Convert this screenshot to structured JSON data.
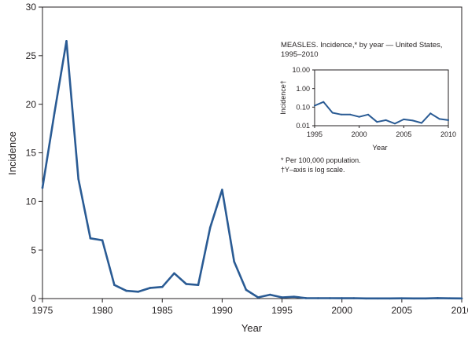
{
  "chart_data": [
    {
      "type": "line",
      "title": "",
      "xlabel": "Year",
      "ylabel": "Incidence",
      "xlim": [
        1975,
        2010
      ],
      "ylim": [
        0,
        30
      ],
      "xticks": [
        "1975",
        "1980",
        "1985",
        "1990",
        "1995",
        "2000",
        "2005",
        "2010"
      ],
      "yticks": [
        "0",
        "5",
        "10",
        "15",
        "20",
        "25",
        "30"
      ],
      "grid": false,
      "line_color": "#2a5b94",
      "series": [
        {
          "x": [
            1975,
            1976,
            1977,
            1978,
            1979,
            1980,
            1981,
            1982,
            1983,
            1984,
            1985,
            1986,
            1987,
            1988,
            1989,
            1990,
            1991,
            1992,
            1993,
            1994,
            1995,
            1996,
            1997,
            1998,
            1999,
            2000,
            2001,
            2002,
            2003,
            2004,
            2005,
            2006,
            2007,
            2008,
            2009,
            2010
          ],
          "values": [
            11.4,
            19.1,
            26.5,
            12.3,
            6.2,
            6.0,
            1.4,
            0.8,
            0.7,
            1.1,
            1.2,
            2.6,
            1.5,
            1.4,
            7.3,
            11.2,
            3.8,
            0.9,
            0.12,
            0.4,
            0.12,
            0.19,
            0.05,
            0.04,
            0.04,
            0.03,
            0.04,
            0.016,
            0.02,
            0.013,
            0.022,
            0.019,
            0.014,
            0.046,
            0.023,
            0.02
          ]
        }
      ]
    },
    {
      "type": "line",
      "title": "MEASLES. Incidence,* by year — United States, 1995–2010",
      "title_lines": [
        "MEASLES. Incidence,* by year — United States,",
        "1995–2010"
      ],
      "xlabel": "Year",
      "ylabel": "Incidence†",
      "xlim": [
        1995,
        2010
      ],
      "ylim": [
        0.01,
        10
      ],
      "yscale": "log",
      "xticks": [
        "1995",
        "2000",
        "2005",
        "2010"
      ],
      "yticks": [
        "0.01",
        "0.10",
        "1.00",
        "10.00"
      ],
      "grid": false,
      "line_color": "#2a5b94",
      "series": [
        {
          "x": [
            1995,
            1996,
            1997,
            1998,
            1999,
            2000,
            2001,
            2002,
            2003,
            2004,
            2005,
            2006,
            2007,
            2008,
            2009,
            2010
          ],
          "values": [
            0.12,
            0.19,
            0.05,
            0.04,
            0.04,
            0.03,
            0.04,
            0.016,
            0.02,
            0.013,
            0.022,
            0.019,
            0.014,
            0.046,
            0.023,
            0.02
          ]
        }
      ]
    }
  ],
  "footnotes": {
    "per_population": "* Per 100,000 population.",
    "log_scale": "†Y–axis is log scale."
  }
}
